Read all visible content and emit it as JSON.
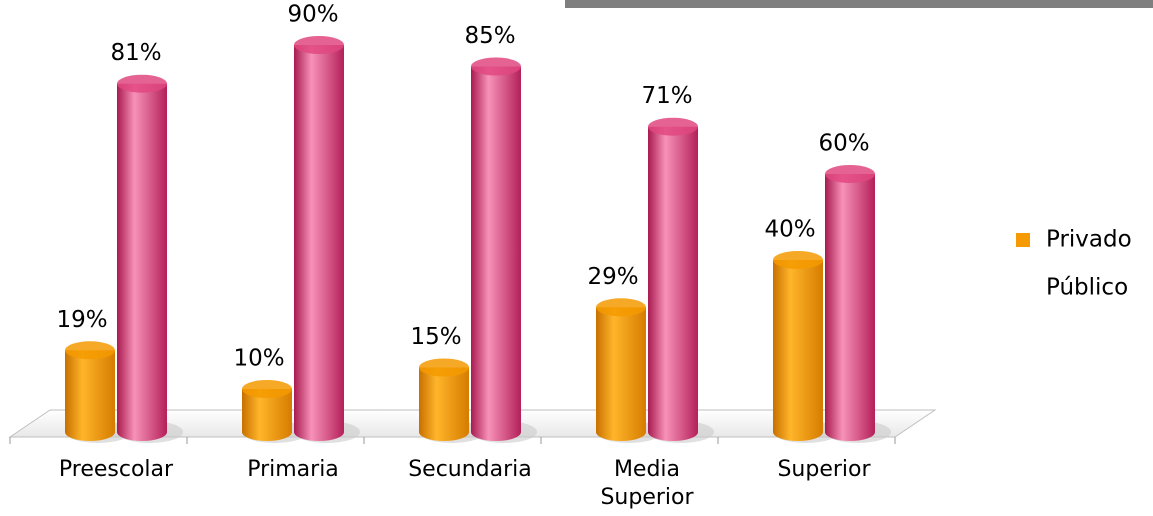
{
  "chart_data": {
    "type": "bar",
    "categories": [
      "Preescolar",
      "Primaria",
      "Secundaria",
      "Media Superior",
      "Superior"
    ],
    "series": [
      {
        "name": "Privado",
        "color": "#f59a00",
        "values": [
          19,
          10,
          15,
          29,
          40
        ],
        "value_labels": [
          "19%",
          "10%",
          "15%",
          "29%",
          "40%"
        ]
      },
      {
        "name": "Público",
        "color": "#e04880",
        "values": [
          81,
          90,
          85,
          71,
          60
        ],
        "value_labels": [
          "81%",
          "90%",
          "85%",
          "71%",
          "60%"
        ]
      }
    ]
  }
}
